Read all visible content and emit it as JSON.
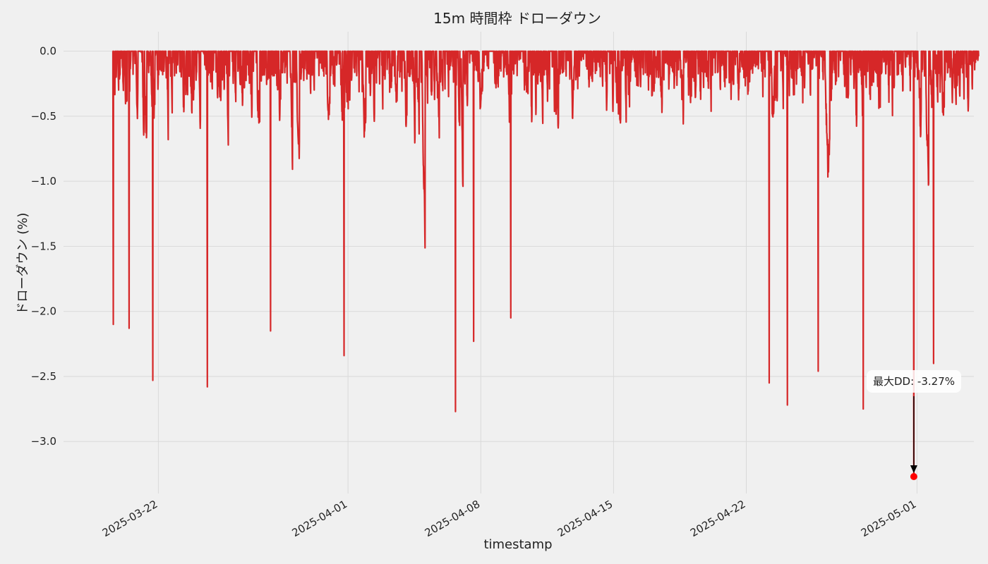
{
  "chart_data": {
    "type": "line",
    "title": "15m 時間枠 ドローダウン",
    "xlabel": "timestamp",
    "ylabel": "ドローダウン (%)",
    "x_range": [
      "2025-03-17T00:00:00",
      "2025-05-04T00:00:00"
    ],
    "ylim": [
      -3.4,
      0.15
    ],
    "y_ticks": [
      0.0,
      -0.5,
      -1.0,
      -1.5,
      -2.0,
      -2.5,
      -3.0
    ],
    "y_tick_labels": [
      "0.0",
      "−0.5",
      "−1.0",
      "−1.5",
      "−2.0",
      "−2.5",
      "−3.0"
    ],
    "x_ticks": [
      "2025-03-22",
      "2025-04-01",
      "2025-04-08",
      "2025-04-15",
      "2025-04-22",
      "2025-05-01"
    ],
    "grid": true,
    "series_color": "#d62728",
    "series": [
      {
        "x_start": "2025-03-19T14:00:00",
        "x_end": "2025-05-04T06:00:00",
        "interval": "15m",
        "notable_dips": [
          {
            "x": "2025-03-19T15:00:00",
            "y": -2.1
          },
          {
            "x": "2025-03-20T11:00:00",
            "y": -2.13
          },
          {
            "x": "2025-03-21T17:00:00",
            "y": -2.53
          },
          {
            "x": "2025-03-24T14:00:00",
            "y": -2.58
          },
          {
            "x": "2025-03-27T22:00:00",
            "y": -2.15
          },
          {
            "x": "2025-03-31T19:00:00",
            "y": -2.34
          },
          {
            "x": "2025-04-06T16:00:00",
            "y": -2.77
          },
          {
            "x": "2025-04-07T15:00:00",
            "y": -2.23
          },
          {
            "x": "2025-04-09T14:00:00",
            "y": -2.05
          },
          {
            "x": "2025-04-23T05:00:00",
            "y": -2.55
          },
          {
            "x": "2025-04-24T04:00:00",
            "y": -2.72
          },
          {
            "x": "2025-04-25T19:00:00",
            "y": -2.46
          },
          {
            "x": "2025-04-28T04:00:00",
            "y": -2.75
          },
          {
            "x": "2025-04-30T20:00:00",
            "y": -3.27
          },
          {
            "x": "2025-05-01T21:00:00",
            "y": -2.4
          }
        ]
      }
    ],
    "max_drawdown": {
      "x": "2025-04-30T20:00:00",
      "y": -3.27,
      "color": "#ff0000"
    },
    "annotation": {
      "text": "最大DD: -3.27%"
    }
  }
}
